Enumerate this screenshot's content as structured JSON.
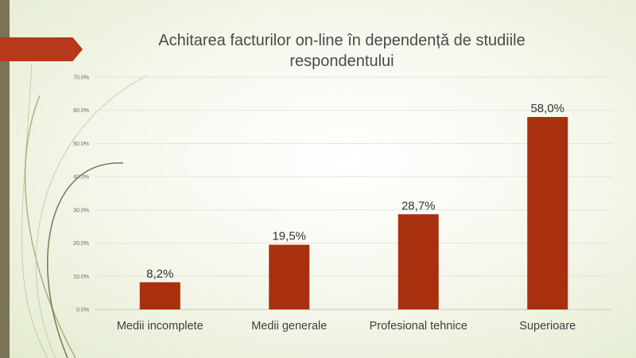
{
  "slide": {
    "accent_color": "#b5391a",
    "side_bar_color": "#7a7356"
  },
  "chart_data": {
    "type": "bar",
    "title": "Achitarea facturilor on-line în dependență de studiile respondentului",
    "categories": [
      "Medii incomplete",
      "Medii generale",
      "Profesional tehnice",
      "Superioare"
    ],
    "values": [
      8.2,
      19.5,
      28.7,
      58.0
    ],
    "data_labels": [
      "8,2%",
      "19,5%",
      "28,7%",
      "58,0%"
    ],
    "y_ticks": [
      "0.0%",
      "10.0%",
      "20.0%",
      "30.0%",
      "40.0%",
      "50.0%",
      "60.0%",
      "70.0%"
    ],
    "ylim": [
      0,
      70
    ],
    "xlabel": "",
    "ylabel": "",
    "grid": true,
    "bar_color": "#a8300f"
  }
}
